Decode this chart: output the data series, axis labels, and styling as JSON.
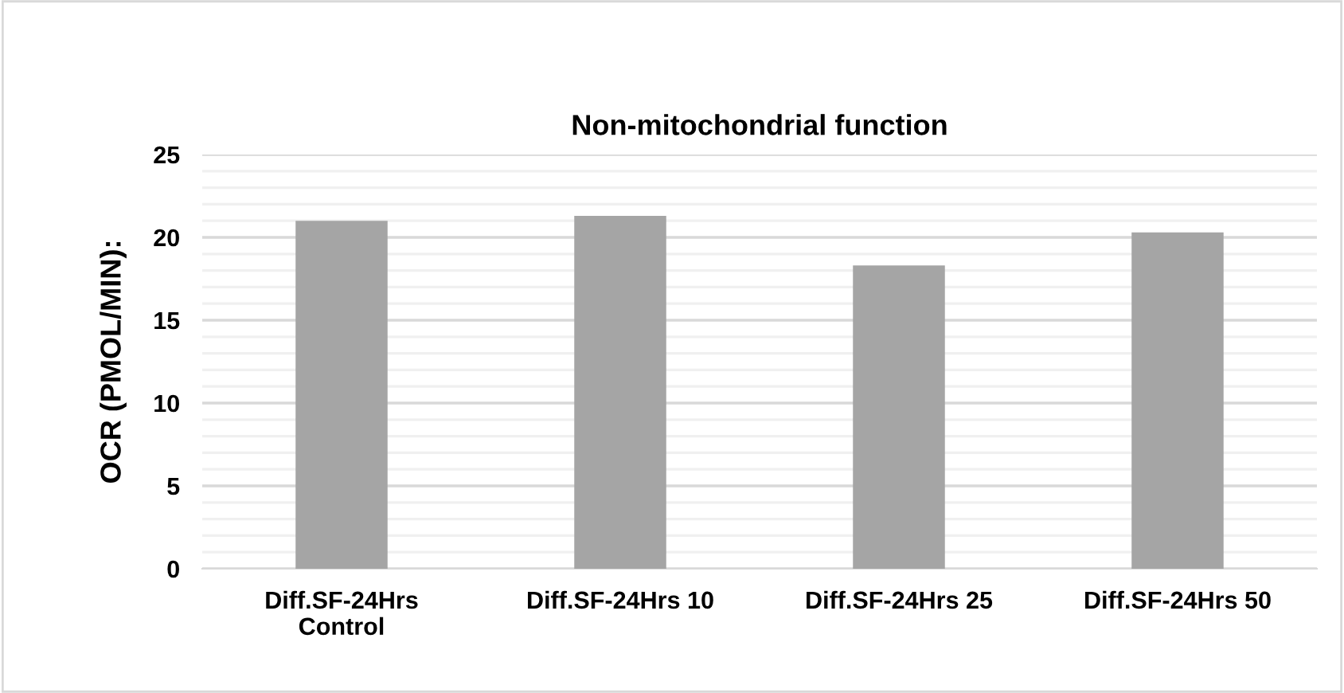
{
  "chart_data": {
    "type": "bar",
    "title": "Non-mitochondrial function",
    "ylabel": "OCR (PMOL/MIN):",
    "categories": [
      "Diff.SF-24Hrs\nControl",
      "Diff.SF-24Hrs 10",
      "Diff.SF-24Hrs 25",
      "Diff.SF-24Hrs 50"
    ],
    "values": [
      21.0,
      21.3,
      18.3,
      20.3
    ],
    "color": "#a5a5a5",
    "ylim": [
      0,
      25
    ],
    "yticks": [
      0,
      {
        "value": 1,
        "label": null
      },
      {
        "value": 2,
        "label": null
      },
      {
        "value": 3,
        "label": null
      },
      {
        "value": 4,
        "label": null
      },
      5,
      {
        "value": 6,
        "label": null
      },
      {
        "value": 7,
        "label": null
      },
      {
        "value": 8,
        "label": null
      },
      {
        "value": 9,
        "label": null
      },
      10,
      {
        "value": 11,
        "label": null
      },
      {
        "value": 12,
        "label": null
      },
      {
        "value": 13,
        "label": null
      },
      {
        "value": 14,
        "label": null
      },
      15,
      {
        "value": 16,
        "label": null
      },
      {
        "value": 17,
        "label": null
      },
      {
        "value": 18,
        "label": null
      },
      {
        "value": 19,
        "label": null
      },
      20,
      {
        "value": 21,
        "label": null
      },
      {
        "value": 22,
        "label": null
      },
      {
        "value": 23,
        "label": null
      },
      {
        "value": 24,
        "label": null
      },
      25
    ],
    "grid": "y",
    "legend": false
  }
}
